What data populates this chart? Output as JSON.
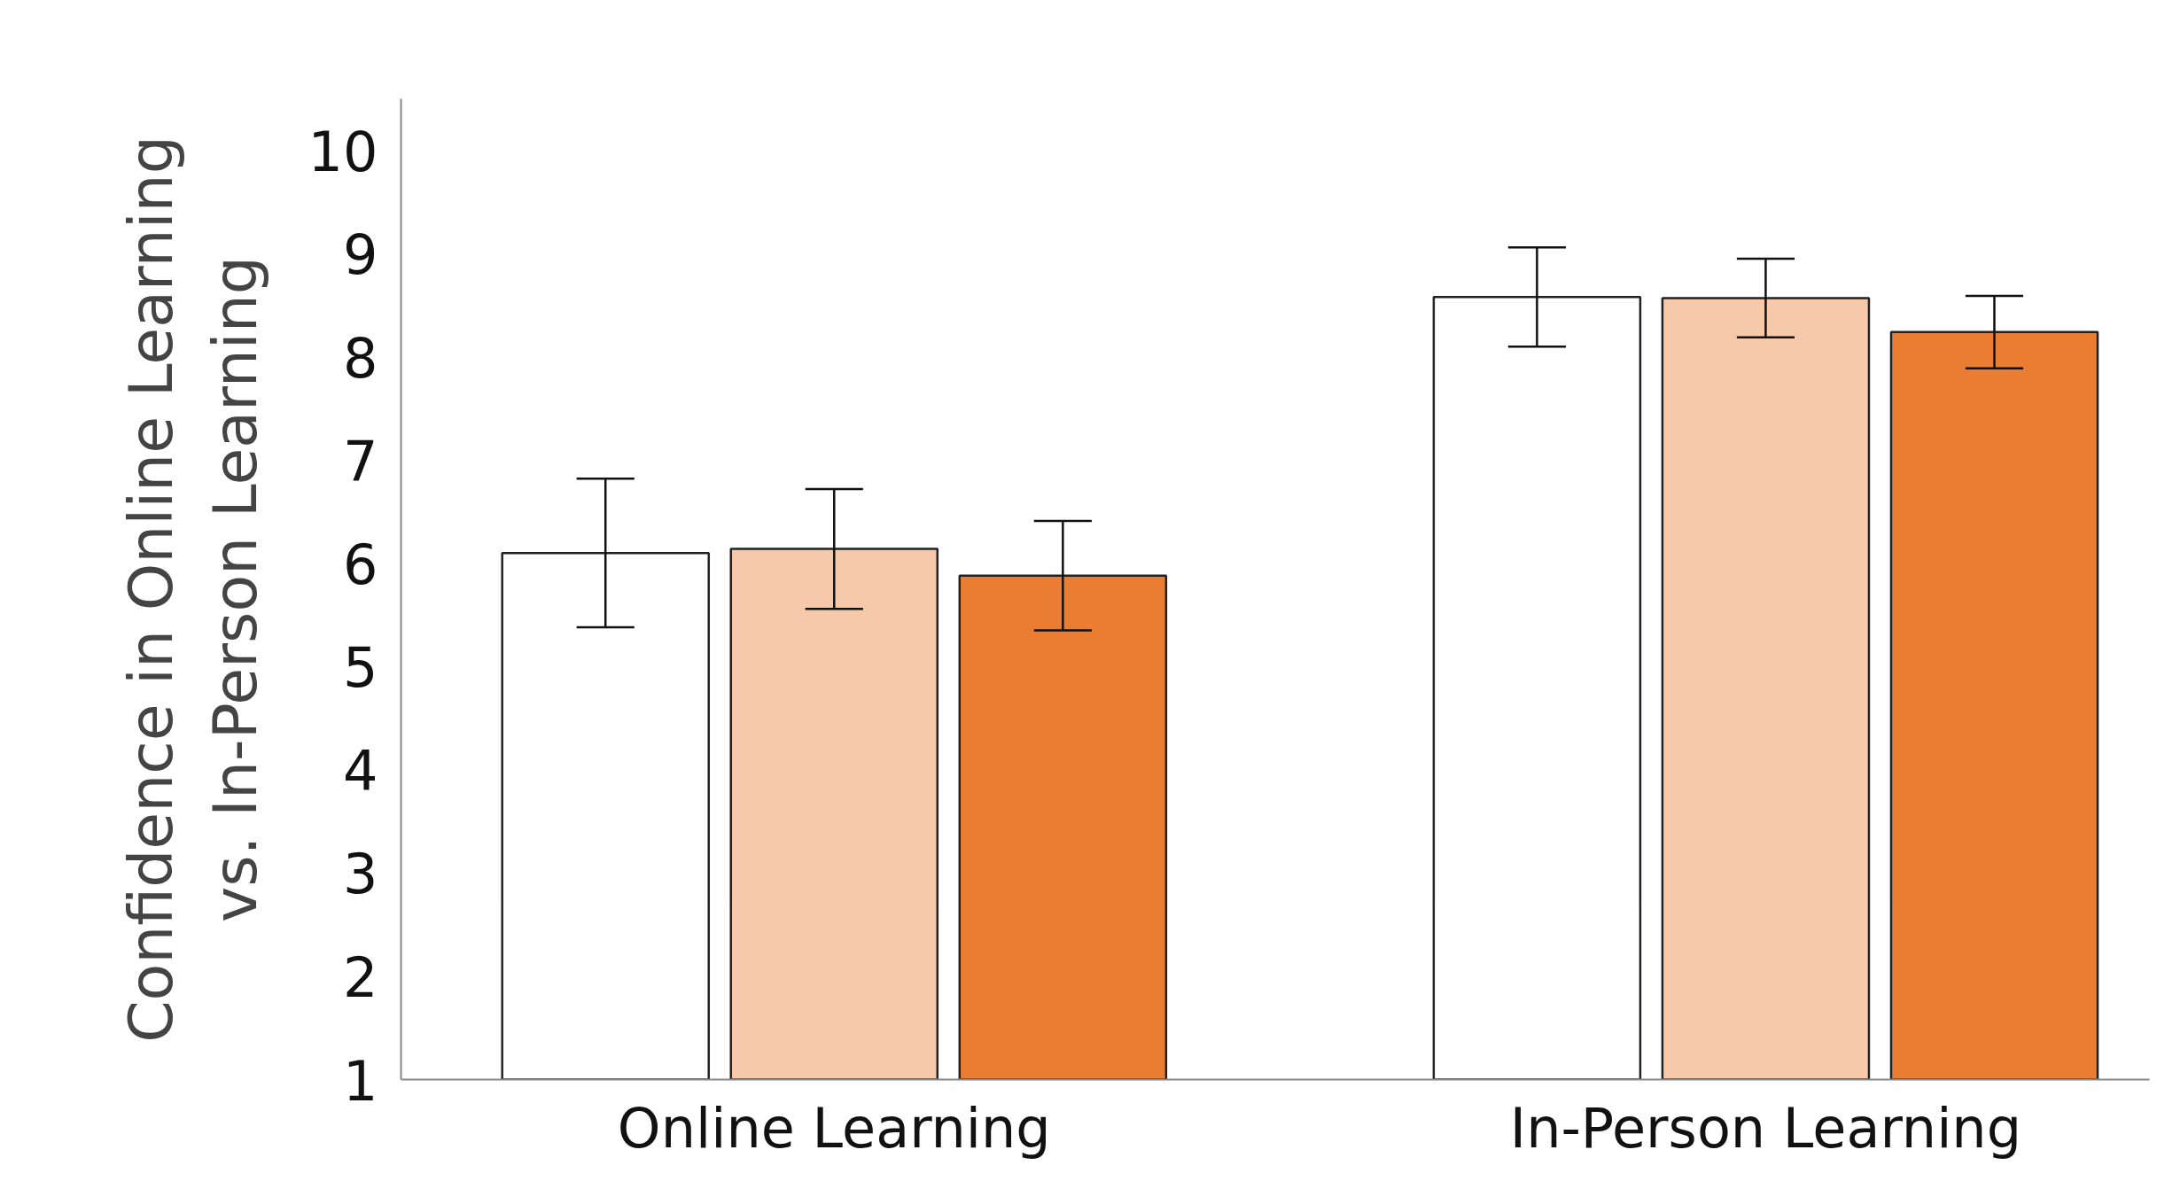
{
  "chart_data": {
    "type": "bar",
    "ylabel": "Confidence in Online Learning\nvs. In-Person Learning",
    "categories": [
      "Online Learning",
      "In-Person Learning"
    ],
    "series": [
      {
        "color": "#ffffff",
        "values": [
          6.1,
          8.58
        ],
        "errors": [
          0.72,
          0.48
        ]
      },
      {
        "color": "#f6c9aa",
        "values": [
          6.14,
          8.57
        ],
        "errors": [
          0.58,
          0.38
        ]
      },
      {
        "color": "#eb7d33",
        "values": [
          5.88,
          8.24
        ],
        "errors": [
          0.53,
          0.35
        ]
      }
    ],
    "ylim": [
      1,
      10.5
    ],
    "yticks": [
      1,
      2,
      3,
      4,
      5,
      6,
      7,
      8,
      9,
      10
    ],
    "grid": false
  }
}
